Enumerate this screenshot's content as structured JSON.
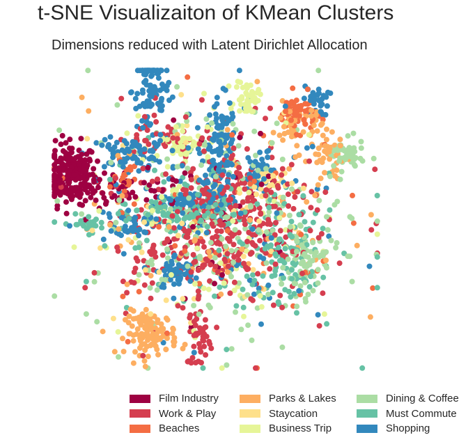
{
  "chart_data": {
    "type": "scatter",
    "title": "t-SNE Visualizaiton of KMean Clusters",
    "subtitle": "Dimensions reduced with Latent Dirichlet Allocation",
    "grid": false,
    "axes_visible": false,
    "legend_position": "bottom-right",
    "series": [
      {
        "name": "Film Industry",
        "color": "#9e0142"
      },
      {
        "name": "Work & Play",
        "color": "#d53e4f"
      },
      {
        "name": "Beaches",
        "color": "#f46d43"
      },
      {
        "name": "Parks & Lakes",
        "color": "#fdae61"
      },
      {
        "name": "Staycation",
        "color": "#fee08b"
      },
      {
        "name": "Business Trip",
        "color": "#e6f598"
      },
      {
        "name": "Dining & Coffee",
        "color": "#abdda4"
      },
      {
        "name": "Must Commute",
        "color": "#66c2a5"
      },
      {
        "name": "Shopping",
        "color": "#3288bd"
      }
    ],
    "clusters": [
      {
        "series": 0,
        "cx": -90,
        "cy": 30,
        "sx": 8,
        "sy": 10,
        "n": 220
      },
      {
        "series": 0,
        "cx": -60,
        "cy": 20,
        "sx": 20,
        "sy": 6,
        "n": 60
      },
      {
        "series": 8,
        "cx": -40,
        "cy": 85,
        "sx": 6,
        "sy": 20,
        "n": 110
      },
      {
        "series": 8,
        "cx": 3,
        "cy": 42,
        "sx": 5,
        "sy": 18,
        "n": 120
      },
      {
        "series": 8,
        "cx": -55,
        "cy": 43,
        "sx": 12,
        "sy": 5,
        "n": 70
      },
      {
        "series": 8,
        "cx": -18,
        "cy": 10,
        "sx": 10,
        "sy": 4,
        "n": 60
      },
      {
        "series": 8,
        "cx": -25,
        "cy": -35,
        "sx": 6,
        "sy": 6,
        "n": 50
      },
      {
        "series": 8,
        "cx": -50,
        "cy": -3,
        "sx": 6,
        "sy": 4,
        "n": 40
      },
      {
        "series": 8,
        "cx": 24,
        "cy": 30,
        "sx": 5,
        "sy": 6,
        "n": 40
      },
      {
        "series": 8,
        "cx": 62,
        "cy": 78,
        "sx": 4,
        "sy": 5,
        "n": 30
      },
      {
        "series": 7,
        "cx": -20,
        "cy": 3,
        "sx": 18,
        "sy": 5,
        "n": 90
      },
      {
        "series": 7,
        "cx": 45,
        "cy": -25,
        "sx": 10,
        "sy": 14,
        "n": 80
      },
      {
        "series": 7,
        "cx": -80,
        "cy": -3,
        "sx": 10,
        "sy": 3,
        "n": 30
      },
      {
        "series": 3,
        "cx": -40,
        "cy": -75,
        "sx": 8,
        "sy": 7,
        "n": 110
      },
      {
        "series": 3,
        "cx": 70,
        "cy": 40,
        "sx": 6,
        "sy": 8,
        "n": 40
      },
      {
        "series": 3,
        "cx": 50,
        "cy": 60,
        "sx": 8,
        "sy": 8,
        "n": 50
      },
      {
        "series": 2,
        "cx": 50,
        "cy": 70,
        "sx": 6,
        "sy": 6,
        "n": 60
      },
      {
        "series": 2,
        "cx": -55,
        "cy": 25,
        "sx": 4,
        "sy": 6,
        "n": 25
      },
      {
        "series": 6,
        "cx": 80,
        "cy": 42,
        "sx": 6,
        "sy": 5,
        "n": 50
      },
      {
        "series": 6,
        "cx": 55,
        "cy": -30,
        "sx": 6,
        "sy": 10,
        "n": 60
      },
      {
        "series": 5,
        "cx": 20,
        "cy": 80,
        "sx": 4,
        "sy": 6,
        "n": 40
      },
      {
        "series": 5,
        "cx": -20,
        "cy": 52,
        "sx": 8,
        "sy": 6,
        "n": 40
      },
      {
        "series": 4,
        "cx": 30,
        "cy": 25,
        "sx": 6,
        "sy": 5,
        "n": 30
      },
      {
        "series": 1,
        "cx": -8,
        "cy": -15,
        "sx": 22,
        "sy": 20,
        "n": 180
      },
      {
        "series": 1,
        "cx": 20,
        "cy": 10,
        "sx": 20,
        "sy": 18,
        "n": 110
      },
      {
        "series": 1,
        "cx": -10,
        "cy": -78,
        "sx": 4,
        "sy": 10,
        "n": 40
      },
      {
        "series": 1,
        "cx": -30,
        "cy": 55,
        "sx": 15,
        "sy": 10,
        "n": 40
      },
      {
        "series": 0,
        "cx": 0,
        "cy": 10,
        "sx": 25,
        "sy": 30,
        "n": 40
      },
      {
        "series": 6,
        "cx": 0,
        "cy": 0,
        "sx": 40,
        "sy": 38,
        "n": 220
      },
      {
        "series": 7,
        "cx": 0,
        "cy": -10,
        "sx": 40,
        "sy": 35,
        "n": 100
      },
      {
        "series": 8,
        "cx": 0,
        "cy": 0,
        "sx": 40,
        "sy": 38,
        "n": 90
      },
      {
        "series": 3,
        "cx": 0,
        "cy": 0,
        "sx": 40,
        "sy": 38,
        "n": 70
      },
      {
        "series": 5,
        "cx": 0,
        "cy": 0,
        "sx": 40,
        "sy": 38,
        "n": 80
      },
      {
        "series": 4,
        "cx": 0,
        "cy": 0,
        "sx": 40,
        "sy": 38,
        "n": 50
      },
      {
        "series": 2,
        "cx": 0,
        "cy": 0,
        "sx": 40,
        "sy": 38,
        "n": 50
      },
      {
        "series": 1,
        "cx": 0,
        "cy": 0,
        "sx": 40,
        "sy": 38,
        "n": 140
      }
    ]
  },
  "legend_entries": [
    "Film Industry",
    "Parks & Lakes",
    "Dining & Coffee",
    "Work & Play",
    "Staycation",
    "Must Commute",
    "Beaches",
    "Business Trip",
    "Shopping"
  ]
}
